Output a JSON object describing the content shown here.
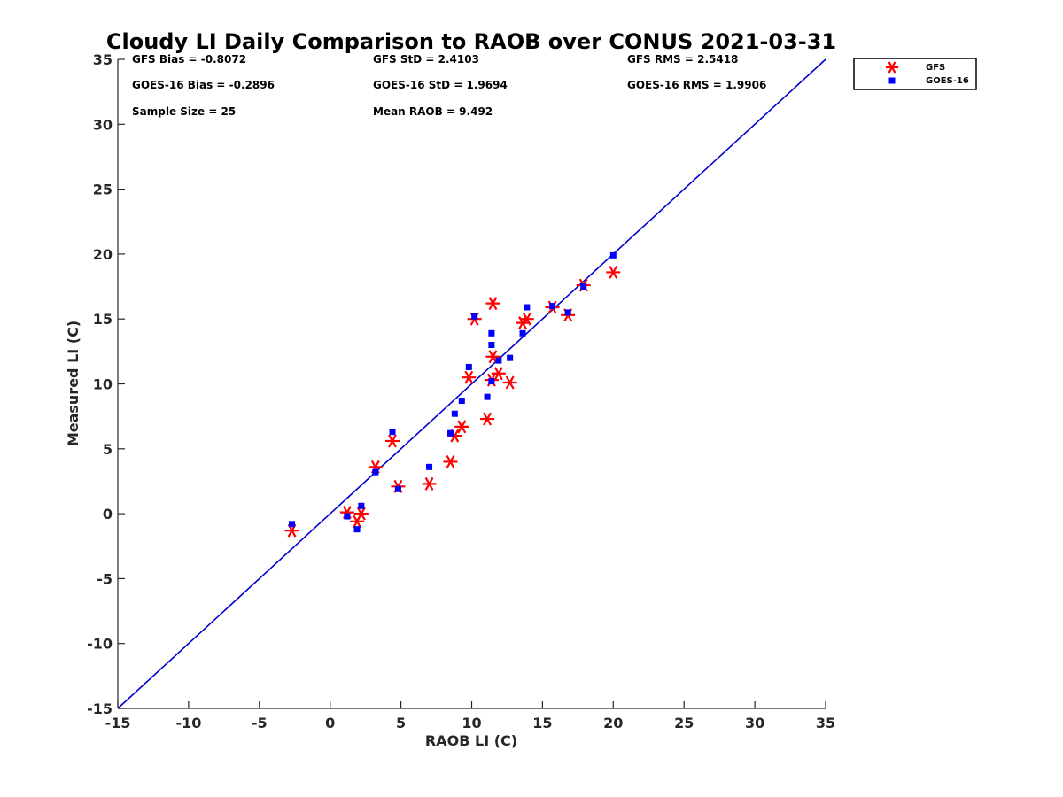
{
  "chart_data": {
    "type": "scatter",
    "title": "Cloudy LI Daily Comparison to RAOB over CONUS 2021-03-31",
    "xlabel": "RAOB LI (C)",
    "ylabel": "Measured LI (C)",
    "xlim": [
      -15,
      35
    ],
    "ylim": [
      -15,
      35
    ],
    "xticks": [
      -15,
      -10,
      -5,
      0,
      5,
      10,
      15,
      20,
      25,
      30,
      35
    ],
    "yticks": [
      -15,
      -10,
      -5,
      0,
      5,
      10,
      15,
      20,
      25,
      30,
      35
    ],
    "grid": false,
    "legend_position": "top-right outside",
    "reference_line": {
      "type": "one-to-one",
      "color": "#0000cc"
    },
    "stats": [
      [
        "GFS Bias = -0.8072",
        "GFS StD = 2.4103",
        "GFS RMS = 2.5418"
      ],
      [
        "GOES-16 Bias = -0.2896",
        "GOES-16 StD = 1.9694",
        "GOES-16 RMS = 1.9906"
      ],
      [
        "Sample Size = 25",
        "Mean RAOB = 9.492",
        ""
      ]
    ],
    "series": [
      {
        "name": "GFS",
        "marker": "asterisk",
        "color": "#ff0000",
        "x": [
          -2.7,
          1.2,
          1.9,
          2.2,
          3.2,
          4.4,
          4.8,
          7.0,
          8.5,
          8.8,
          9.3,
          9.8,
          10.2,
          11.1,
          11.4,
          11.5,
          11.5,
          11.9,
          12.7,
          13.6,
          13.9,
          15.7,
          16.8,
          17.9,
          20.0
        ],
        "y": [
          -1.3,
          0.1,
          -0.6,
          0.0,
          3.6,
          5.6,
          2.1,
          2.3,
          4.0,
          6.0,
          6.7,
          10.5,
          15.0,
          7.3,
          10.3,
          12.1,
          16.2,
          10.8,
          10.1,
          14.7,
          15.0,
          15.9,
          15.3,
          17.6,
          18.6
        ]
      },
      {
        "name": "GOES-16",
        "marker": "square",
        "color": "#0000ff",
        "x": [
          -2.7,
          1.2,
          1.9,
          2.2,
          3.2,
          4.4,
          4.8,
          7.0,
          8.5,
          8.8,
          9.3,
          9.8,
          10.2,
          11.1,
          11.4,
          11.4,
          11.4,
          11.9,
          12.7,
          13.6,
          13.9,
          15.7,
          16.8,
          17.9,
          20.0
        ],
        "y": [
          -0.8,
          -0.2,
          -1.2,
          0.6,
          3.2,
          6.3,
          1.9,
          3.6,
          6.2,
          7.7,
          8.7,
          11.3,
          15.2,
          9.0,
          10.2,
          13.0,
          13.9,
          11.8,
          12.0,
          13.9,
          15.9,
          16.0,
          15.5,
          17.5,
          19.9
        ]
      }
    ]
  }
}
